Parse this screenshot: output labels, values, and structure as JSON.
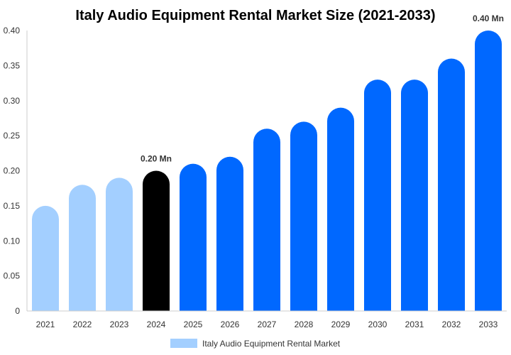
{
  "chart_data": {
    "type": "bar",
    "title": "Italy Audio Equipment Rental Market Size (2021-2033)",
    "xlabel": "",
    "ylabel": "",
    "categories": [
      "2021",
      "2022",
      "2023",
      "2024",
      "2025",
      "2026",
      "2027",
      "2028",
      "2029",
      "2030",
      "2031",
      "2032",
      "2033"
    ],
    "series": [
      {
        "name": "Italy Audio Equipment Rental Market",
        "values": [
          0.15,
          0.18,
          0.19,
          0.2,
          0.21,
          0.22,
          0.26,
          0.27,
          0.29,
          0.33,
          0.33,
          0.36,
          0.4
        ]
      }
    ],
    "ylim": [
      0,
      0.4
    ],
    "yticks": [
      "0",
      "0.05",
      "0.10",
      "0.15",
      "0.20",
      "0.25",
      "0.30",
      "0.35",
      "0.40"
    ],
    "data_labels": [
      {
        "index": 3,
        "text": "0.20 Mn"
      },
      {
        "index": 12,
        "text": "0.40 Mn"
      }
    ],
    "bar_colors": {
      "historical": "#a3cfff",
      "base_year": "#000000",
      "forecast": "#0068ff"
    },
    "bar_color_by_index": [
      "historical",
      "historical",
      "historical",
      "base_year",
      "forecast",
      "forecast",
      "forecast",
      "forecast",
      "forecast",
      "forecast",
      "forecast",
      "forecast",
      "forecast"
    ],
    "legend": {
      "placement": "bottom-center",
      "label": "Italy Audio Equipment Rental Market",
      "color": "#a3cfff"
    },
    "grid": false
  }
}
